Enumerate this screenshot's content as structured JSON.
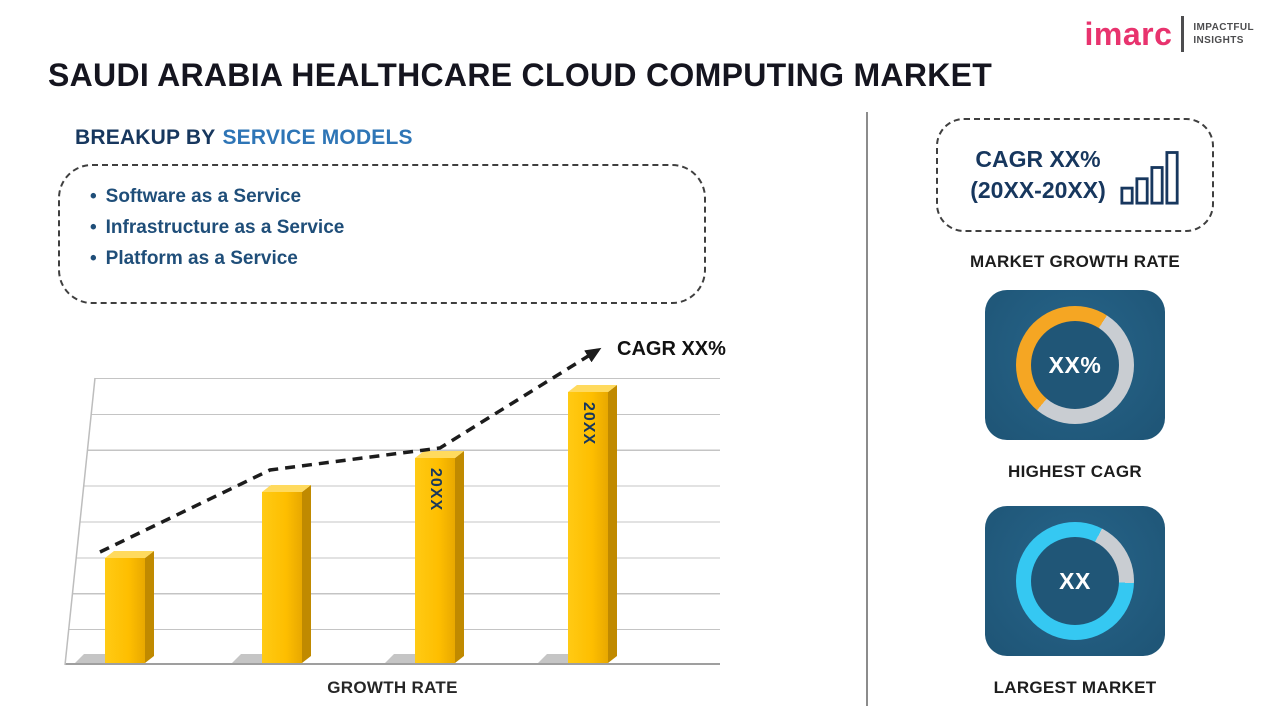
{
  "logo": {
    "brand": "imarc",
    "tagline_line1": "IMPACTFUL",
    "tagline_line2": "INSIGHTS"
  },
  "title": "SAUDI ARABIA HEALTHCARE CLOUD COMPUTING MARKET",
  "breakup": {
    "heading_prefix": "BREAKUP BY",
    "heading_highlight": "SERVICE MODELS",
    "items": [
      "Software as a Service",
      "Infrastructure as a Service",
      "Platform as a Service"
    ]
  },
  "chart_data": {
    "type": "bar",
    "bar_labels": [
      null,
      null,
      "20XX",
      "20XX"
    ],
    "values": [
      37,
      60,
      72,
      95
    ],
    "ymax": 100,
    "xlabel": "GROWTH RATE",
    "trend_annotation": "CAGR XX%",
    "bar_color": "#FEBE00",
    "bar_side_color": "#C08A00",
    "grid": true,
    "legend": false
  },
  "right_panel": {
    "growth_box": {
      "line1": "CAGR XX%",
      "line2": "(20XX-20XX)"
    },
    "growth_caption": "MARKET GROWTH RATE",
    "tile_color": "#205677",
    "highest_cagr": {
      "value": "XX%",
      "caption": "HIGHEST CAGR",
      "donut": {
        "color": "#F5A623",
        "track": "#C9CDD2",
        "start_deg": 220,
        "pct": 48
      }
    },
    "largest_market": {
      "value": "XX",
      "caption": "LARGEST MARKET",
      "donut": {
        "color": "#35C8F2",
        "track": "#C9CDD2",
        "start_deg": 92,
        "pct": 82
      }
    }
  }
}
